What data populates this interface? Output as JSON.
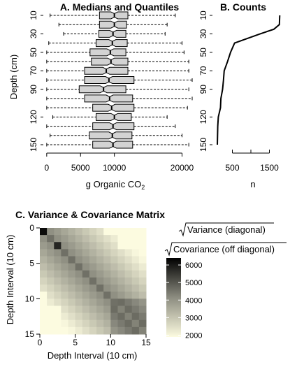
{
  "chart_data": [
    {
      "type": "boxplot",
      "title": "A. Medians and Quantiles",
      "xlabel": "g Organic CO",
      "xlabel_sub": "2",
      "ylabel": "Depth (cm)",
      "xlim": [
        -500,
        21500
      ],
      "x_ticks": [
        "0",
        "5000",
        "10000",
        "20000"
      ],
      "x_tick_values": [
        0,
        5000,
        10000,
        20000
      ],
      "y_ticks": [
        "10",
        "30",
        "50",
        "70",
        "90",
        "120",
        "150"
      ],
      "y_tick_values": [
        10,
        30,
        50,
        70,
        90,
        120,
        150
      ],
      "depths": [
        10,
        20,
        30,
        40,
        50,
        60,
        70,
        80,
        90,
        100,
        110,
        120,
        130,
        140,
        150
      ],
      "boxes": [
        {
          "depth": 10,
          "whisker_low": 500,
          "q1": 7800,
          "median": 10000,
          "q3": 12000,
          "whisker_high": 19000
        },
        {
          "depth": 20,
          "whisker_low": 1800,
          "q1": 7800,
          "median": 10000,
          "q3": 11800,
          "whisker_high": 17800
        },
        {
          "depth": 30,
          "whisker_low": 2500,
          "q1": 7700,
          "median": 9800,
          "q3": 11700,
          "whisker_high": 17500
        },
        {
          "depth": 40,
          "whisker_low": 300,
          "q1": 7300,
          "median": 9700,
          "q3": 11900,
          "whisker_high": 20000
        },
        {
          "depth": 50,
          "whisker_low": 0,
          "q1": 6400,
          "median": 9400,
          "q3": 11700,
          "whisker_high": 20300
        },
        {
          "depth": 60,
          "whisker_low": 0,
          "q1": 6600,
          "median": 9500,
          "q3": 12000,
          "whisker_high": 21000
        },
        {
          "depth": 70,
          "whisker_low": 0,
          "q1": 5600,
          "median": 8800,
          "q3": 12000,
          "whisker_high": 21000
        },
        {
          "depth": 80,
          "whisker_low": 0,
          "q1": 5600,
          "median": 9200,
          "q3": 12900,
          "whisker_high": 21500
        },
        {
          "depth": 90,
          "whisker_low": 0,
          "q1": 4800,
          "median": 8400,
          "q3": 11700,
          "whisker_high": 21000
        },
        {
          "depth": 100,
          "whisker_low": 0,
          "q1": 5600,
          "median": 9300,
          "q3": 12700,
          "whisker_high": 21500
        },
        {
          "depth": 110,
          "whisker_low": 0,
          "q1": 6800,
          "median": 9600,
          "q3": 12900,
          "whisker_high": 20800
        },
        {
          "depth": 120,
          "whisker_low": 900,
          "q1": 7300,
          "median": 10000,
          "q3": 12500,
          "whisker_high": 17800
        },
        {
          "depth": 130,
          "whisker_low": 0,
          "q1": 6800,
          "median": 9800,
          "q3": 12900,
          "whisker_high": 19000
        },
        {
          "depth": 140,
          "whisker_low": 500,
          "q1": 6300,
          "median": 9700,
          "q3": 12600,
          "whisker_high": 20000
        },
        {
          "depth": 150,
          "whisker_low": 0,
          "q1": 6800,
          "median": 9800,
          "q3": 12700,
          "whisker_high": 21000
        }
      ],
      "colors": {
        "box_fill": "#d3d3d3",
        "stroke": "#000000"
      }
    },
    {
      "type": "line",
      "title": "B. Counts",
      "xlabel": "n",
      "xlim": [
        0,
        2000
      ],
      "x_ticks": [
        "500",
        "1500"
      ],
      "x_tick_values": [
        500,
        1500
      ],
      "y_ticks": [
        "10",
        "30",
        "50",
        "70",
        "90",
        "120",
        "150"
      ],
      "y_tick_values": [
        10,
        30,
        50,
        70,
        90,
        120,
        150
      ],
      "points": [
        {
          "depth": 10,
          "n": 1780
        },
        {
          "depth": 20,
          "n": 1770
        },
        {
          "depth": 25,
          "n": 1620
        },
        {
          "depth": 30,
          "n": 1250
        },
        {
          "depth": 40,
          "n": 560
        },
        {
          "depth": 50,
          "n": 450
        },
        {
          "depth": 60,
          "n": 370
        },
        {
          "depth": 70,
          "n": 280
        },
        {
          "depth": 80,
          "n": 260
        },
        {
          "depth": 90,
          "n": 235
        },
        {
          "depth": 100,
          "n": 190
        },
        {
          "depth": 110,
          "n": 180
        },
        {
          "depth": 120,
          "n": 120
        },
        {
          "depth": 130,
          "n": 105
        },
        {
          "depth": 140,
          "n": 100
        },
        {
          "depth": 150,
          "n": 95
        }
      ]
    },
    {
      "type": "heatmap",
      "title": "C. Variance & Covariance Matrix",
      "xlabel": "Depth Interval (10 cm)",
      "ylabel": "Depth Interval (10 cm)",
      "x_ticks": [
        "0",
        "5",
        "10",
        "15"
      ],
      "y_ticks": [
        "0",
        "5",
        "10",
        "15"
      ],
      "tick_values": [
        0,
        5,
        10,
        15
      ],
      "n": 15,
      "legend_labels": [
        "Variance (diagonal)",
        "Covariance (off diagonal)"
      ],
      "colorbar_ticks": [
        "6000",
        "5000",
        "4000",
        "3000",
        "2000"
      ],
      "colorbar_values": [
        6000,
        5000,
        4000,
        3000,
        2000
      ],
      "colorbar_range": [
        1900,
        6400
      ],
      "colors": {
        "low": "#fcfbe0",
        "mid": "#8c8c80",
        "high": "#000000"
      }
    }
  ]
}
